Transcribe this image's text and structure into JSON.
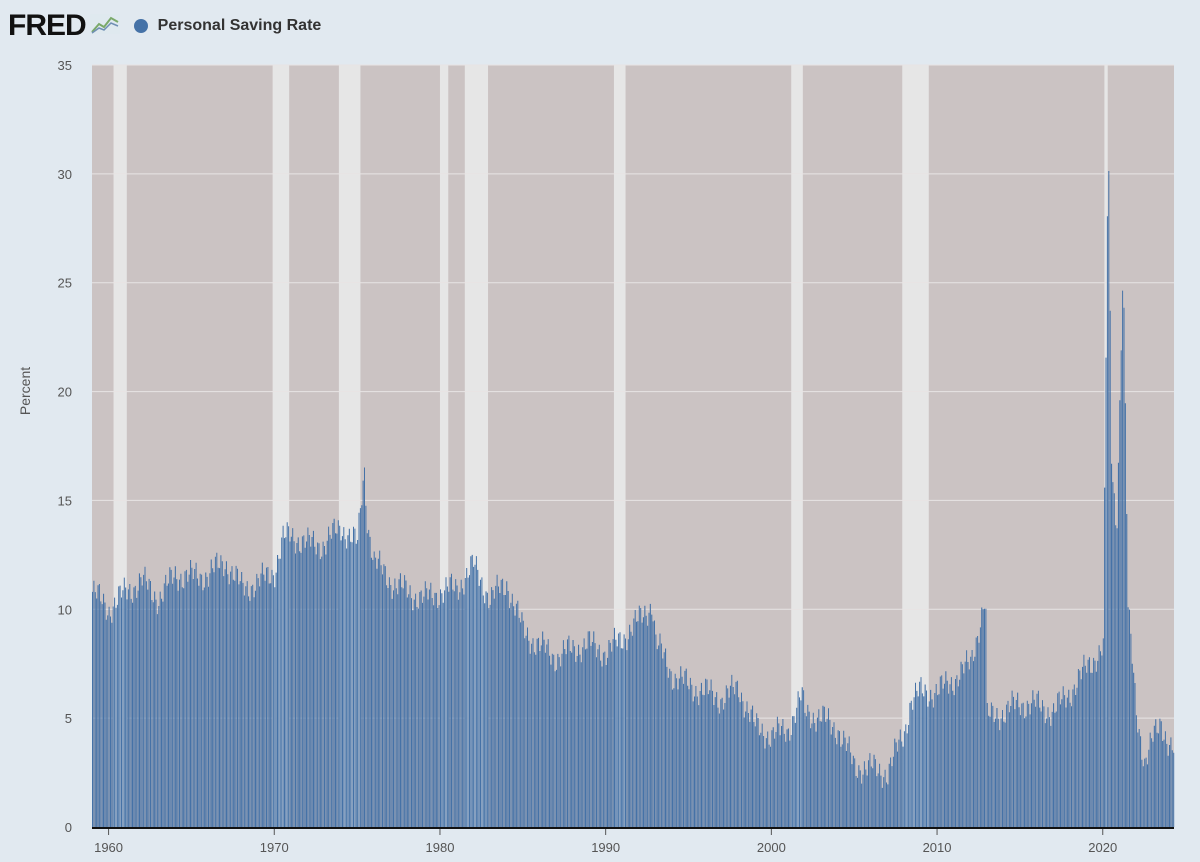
{
  "header": {
    "logo_text": "FRED",
    "series_title": "Personal Saving Rate"
  },
  "colors": {
    "series": "#4572a7",
    "plot_background": "#cbc3c3",
    "recession_band": "#e6e6e6",
    "page_background": "#e1e9f0"
  },
  "chart_data": {
    "type": "bar",
    "title": "Personal Saving Rate",
    "xlabel": "",
    "ylabel": "Percent",
    "ylim": [
      0,
      35
    ],
    "xlim": [
      1959.0,
      2024.3
    ],
    "y_ticks": [
      "0",
      "5",
      "10",
      "15",
      "20",
      "25",
      "30",
      "35"
    ],
    "x_ticks": [
      "1960",
      "1970",
      "1980",
      "1990",
      "2000",
      "2010",
      "2020"
    ],
    "legend": "top-left",
    "grid": true,
    "recessions": [
      [
        1960.3,
        1961.1
      ],
      [
        1969.9,
        1970.9
      ],
      [
        1973.9,
        1975.2
      ],
      [
        1980.0,
        1980.5
      ],
      [
        1981.5,
        1982.9
      ],
      [
        1990.5,
        1991.2
      ],
      [
        2001.2,
        2001.9
      ],
      [
        2007.9,
        2009.5
      ],
      [
        2020.1,
        2020.3
      ]
    ],
    "series": [
      {
        "name": "Personal Saving Rate",
        "x": [
          1959.0,
          1960.0,
          1961.0,
          1962.0,
          1963.0,
          1964.0,
          1965.0,
          1966.0,
          1967.0,
          1968.0,
          1969.0,
          1970.0,
          1970.5,
          1971.0,
          1972.0,
          1973.0,
          1974.0,
          1975.0,
          1975.4,
          1975.6,
          1976.0,
          1977.0,
          1978.0,
          1979.0,
          1980.0,
          1981.0,
          1982.0,
          1983.0,
          1984.0,
          1985.0,
          1986.0,
          1987.0,
          1988.0,
          1989.0,
          1990.0,
          1991.0,
          1992.0,
          1992.8,
          1993.0,
          1994.0,
          1995.0,
          1996.0,
          1997.0,
          1998.0,
          1999.0,
          2000.0,
          2001.0,
          2001.8,
          2002.0,
          2003.0,
          2004.0,
          2005.0,
          2006.0,
          2007.0,
          2008.0,
          2008.4,
          2009.0,
          2010.0,
          2011.0,
          2012.0,
          2012.9,
          2013.0,
          2014.0,
          2015.0,
          2016.0,
          2017.0,
          2018.0,
          2019.0,
          2020.0,
          2020.3,
          2020.5,
          2020.8,
          2021.0,
          2021.2,
          2021.5,
          2022.0,
          2022.5,
          2023.0,
          2023.5,
          2024.0,
          2024.3
        ],
        "values": [
          10.8,
          10.0,
          10.8,
          11.3,
          10.5,
          11.6,
          11.5,
          11.6,
          12.2,
          11.0,
          11.2,
          11.8,
          13.2,
          13.4,
          13.0,
          13.0,
          13.8,
          13.0,
          16.5,
          14.0,
          12.2,
          11.3,
          10.8,
          10.5,
          10.8,
          11.0,
          12.0,
          10.5,
          11.2,
          9.0,
          8.3,
          7.8,
          8.2,
          8.4,
          8.0,
          8.7,
          9.5,
          10.3,
          8.5,
          7.0,
          6.5,
          6.2,
          5.9,
          6.4,
          4.6,
          4.2,
          4.5,
          6.0,
          5.3,
          5.0,
          4.5,
          2.8,
          2.7,
          2.5,
          4.4,
          5.8,
          6.2,
          6.2,
          6.8,
          7.5,
          10.6,
          5.0,
          5.3,
          5.7,
          5.6,
          5.3,
          6.2,
          7.3,
          8.3,
          32.0,
          17.0,
          13.5,
          19.5,
          26.3,
          10.0,
          5.3,
          3.0,
          4.0,
          4.8,
          3.8,
          3.5
        ]
      }
    ]
  }
}
